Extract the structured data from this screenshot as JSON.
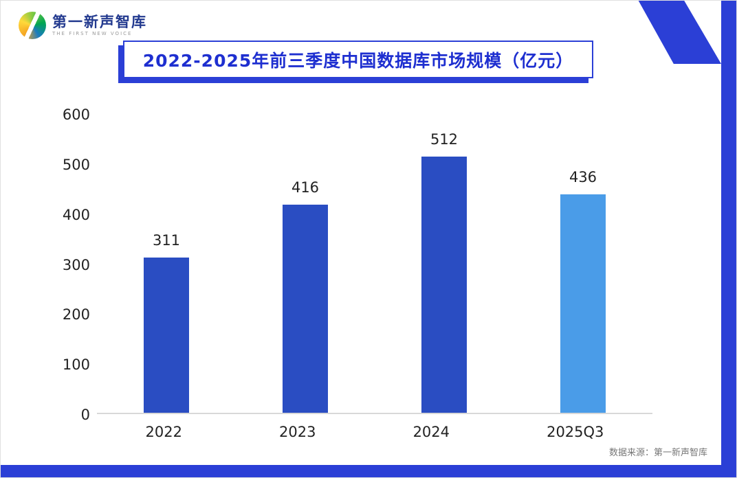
{
  "logo": {
    "name": "第一新声智库",
    "subtitle": "THE FIRST NEW VOICE"
  },
  "title": "2022-2025年前三季度中国数据库市场规模（亿元）",
  "source": "数据来源：第一新声智库",
  "colors": {
    "accent_blue": "#2b3fd6",
    "title_text": "#1e2fd0",
    "bar_primary": "#2a4dc2",
    "bar_highlight": "#4a9ce8",
    "axis_line": "#d8d8d8"
  },
  "chart_data": {
    "type": "bar",
    "title": "2022-2025年前三季度中国数据库市场规模（亿元）",
    "categories": [
      "2022",
      "2023",
      "2024",
      "2025Q3"
    ],
    "values": [
      311,
      416,
      512,
      436
    ],
    "bar_colors": [
      "#2a4dc2",
      "#2a4dc2",
      "#2a4dc2",
      "#4a9ce8"
    ],
    "xlabel": "",
    "ylabel": "",
    "ylim": [
      0,
      600
    ],
    "yticks": [
      0,
      100,
      200,
      300,
      400,
      500,
      600
    ],
    "grid": false,
    "legend": false,
    "value_labels": true,
    "source_note": "数据来源：第一新声智库"
  }
}
